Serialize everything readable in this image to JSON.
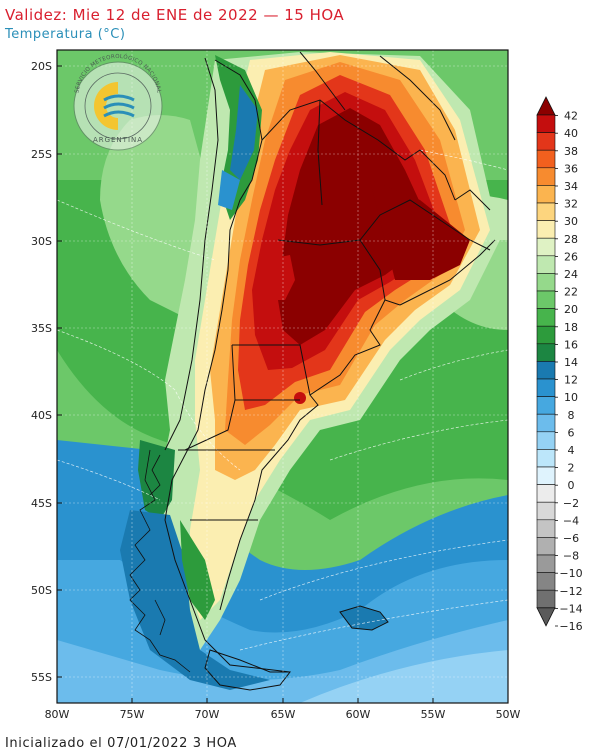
{
  "header": {
    "title": "Validez: Mie 12 de ENE de 2022 — 15 HOA",
    "subtitle": "Temperatura (°C)"
  },
  "footer": {
    "text": "Inicializado el 07/01/2022 3 HOA"
  },
  "logo": {
    "arc_text": "SERVICIO METEOROLÓGICO NACIONAL",
    "bottom_text": "ARGENTINA"
  },
  "axes": {
    "lat_labels": [
      "20S",
      "25S",
      "30S",
      "35S",
      "40S",
      "45S",
      "50S",
      "55S"
    ],
    "lon_labels": [
      "80W",
      "75W",
      "70W",
      "65W",
      "60W",
      "55W",
      "50W"
    ]
  },
  "colorbar": {
    "labels": [
      "42",
      "40",
      "38",
      "36",
      "34",
      "32",
      "30",
      "28",
      "26",
      "24",
      "22",
      "20",
      "18",
      "16",
      "14",
      "12",
      "10",
      "8",
      "6",
      "4",
      "2",
      "0",
      "−2",
      "−4",
      "−6",
      "−8",
      "−10",
      "−12",
      "−14",
      "−16"
    ],
    "colors": [
      "#8b0000",
      "#c40e0e",
      "#e3361a",
      "#f2601e",
      "#f78b2f",
      "#fbb44f",
      "#fdd57e",
      "#fbeeb1",
      "#dff2c4",
      "#bfe8b0",
      "#95d98b",
      "#6cc869",
      "#47b44c",
      "#2d9b3c",
      "#1c8642",
      "#1a7ab0",
      "#2a92cf",
      "#46a8e0",
      "#6cbcec",
      "#95d2f4",
      "#bce6fa",
      "#dff3fd",
      "#ececec",
      "#d8d8d8",
      "#c4c4c4",
      "#b0b0b0",
      "#9a9a9a",
      "#858585",
      "#707070",
      "#5a5a5a"
    ]
  }
}
